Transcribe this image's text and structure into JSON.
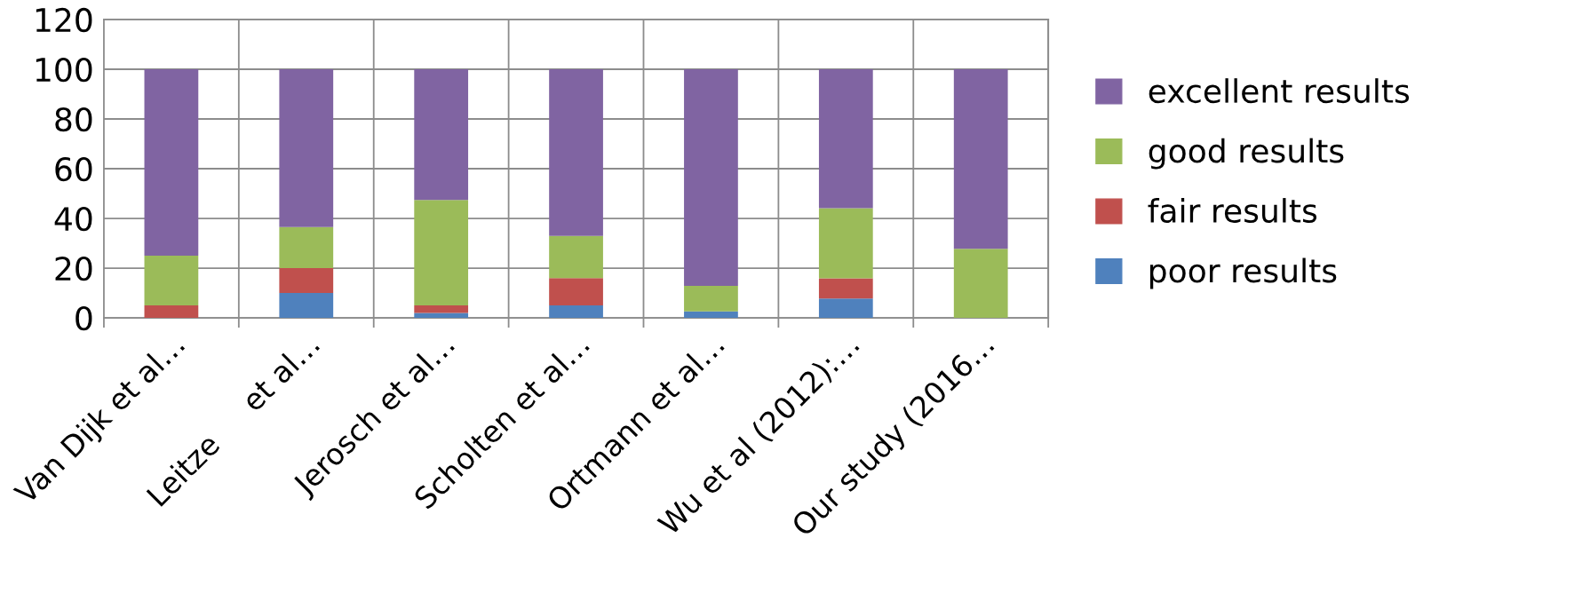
{
  "chart_data": {
    "type": "bar",
    "stacked": true,
    "categories": [
      "Van Dijk et al…",
      "Leitze     et al…",
      "Jerosch et al…",
      "Scholten et al…",
      "Ortmann et al…",
      "Wu et al (2012):…",
      "Our study (2016…"
    ],
    "series": [
      {
        "name": "poor results",
        "color": "#4f81bd",
        "values": [
          0,
          10,
          2,
          5,
          2.6,
          7.8,
          0
        ]
      },
      {
        "name": "fair results",
        "color": "#c0504d",
        "values": [
          5,
          10,
          3,
          11,
          0,
          8.1,
          0
        ]
      },
      {
        "name": "good results",
        "color": "#9bbb59",
        "values": [
          20,
          16.5,
          42.4,
          17,
          10.3,
          28.2,
          27.8
        ]
      },
      {
        "name": "excellent results",
        "color": "#8064a2",
        "values": [
          75,
          63.5,
          52.6,
          67,
          87.1,
          55.9,
          72.2
        ]
      }
    ],
    "ylim": [
      0,
      120
    ],
    "yticks": [
      0,
      20,
      40,
      60,
      80,
      100,
      120
    ],
    "grid": true,
    "legend": "right"
  }
}
